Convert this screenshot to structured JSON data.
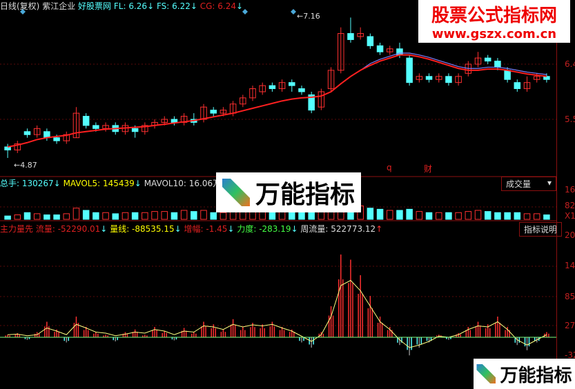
{
  "header": {
    "period": "日线(复权)",
    "stock": "紫江企业",
    "site": "好股票网",
    "fl": "FL: 6.26",
    "fs": "FS: 6.22",
    "cg": "CG: 6.24",
    "arrow": "↓"
  },
  "volume_legend": {
    "total": "总手: 130267",
    "mavol5": "MAVOL5: 145439",
    "mavol10": "MAVOL10: 16.06万",
    "selector": "成交量"
  },
  "indicator_legend": {
    "name": "主力量先",
    "flow": "流量: -52290.01",
    "line": "量线: -88535.15",
    "inc": "增幅: -1.45",
    "force": "力度: -283.19",
    "week": "周流量: 522773.12",
    "up": "↑",
    "btn": "指标说明"
  },
  "annotations": {
    "high": "7.16",
    "low": "4.87",
    "q": "q",
    "cai": "财"
  },
  "axis": {
    "price": [
      "6.4",
      "5.5"
    ],
    "volume": [
      "16",
      "82",
      "X1"
    ],
    "indicator": [
      "20",
      "14",
      "85",
      "27",
      "-32"
    ]
  },
  "watermarks": {
    "site_name": "股票公式指标网",
    "site_url": "www.gszx.com.cn",
    "logo": "万能指标"
  },
  "colors": {
    "up": "#ff3030",
    "down": "#54ffff",
    "ma": "#ff2020",
    "ma2": "#8080ff",
    "bg": "#000000"
  },
  "chart_data": [
    {
      "type": "candlestick",
      "title": "",
      "ylim": [
        4.7,
        7.3
      ],
      "ohlc": [
        [
          5.05,
          5.0,
          5.1,
          4.87
        ],
        [
          5.0,
          5.1,
          5.15,
          4.95
        ],
        [
          5.3,
          5.25,
          5.35,
          5.2
        ],
        [
          5.25,
          5.35,
          5.4,
          5.2
        ],
        [
          5.3,
          5.2,
          5.35,
          5.15
        ],
        [
          5.2,
          5.15,
          5.25,
          5.1
        ],
        [
          5.15,
          5.25,
          5.3,
          5.1
        ],
        [
          5.2,
          5.6,
          5.7,
          5.2
        ],
        [
          5.55,
          5.4,
          5.6,
          5.35
        ],
        [
          5.4,
          5.35,
          5.45,
          5.3
        ],
        [
          5.35,
          5.4,
          5.45,
          5.3
        ],
        [
          5.4,
          5.3,
          5.45,
          5.25
        ],
        [
          5.3,
          5.4,
          5.45,
          5.25
        ],
        [
          5.35,
          5.3,
          5.4,
          5.2
        ],
        [
          5.3,
          5.4,
          5.45,
          5.25
        ],
        [
          5.4,
          5.45,
          5.5,
          5.35
        ],
        [
          5.45,
          5.5,
          5.55,
          5.4
        ],
        [
          5.5,
          5.45,
          5.55,
          5.4
        ],
        [
          5.45,
          5.55,
          5.6,
          5.4
        ],
        [
          5.5,
          5.45,
          5.6,
          5.4
        ],
        [
          5.5,
          5.7,
          5.75,
          5.45
        ],
        [
          5.65,
          5.6,
          5.7,
          5.55
        ],
        [
          5.6,
          5.65,
          5.7,
          5.55
        ],
        [
          5.6,
          5.75,
          5.8,
          5.55
        ],
        [
          5.75,
          5.85,
          5.9,
          5.7
        ],
        [
          5.85,
          6.0,
          6.05,
          5.8
        ],
        [
          5.95,
          6.05,
          6.1,
          5.9
        ],
        [
          6.05,
          6.0,
          6.1,
          5.95
        ],
        [
          6.0,
          6.1,
          6.15,
          5.95
        ],
        [
          6.1,
          6.05,
          6.15,
          5.95
        ],
        [
          6.0,
          5.95,
          6.05,
          5.9
        ],
        [
          5.9,
          5.65,
          5.95,
          5.6
        ],
        [
          5.7,
          5.95,
          6.0,
          5.65
        ],
        [
          6.0,
          6.3,
          6.35,
          5.95
        ],
        [
          6.3,
          6.9,
          7.0,
          6.25
        ],
        [
          6.9,
          6.8,
          7.16,
          6.75
        ],
        [
          6.85,
          6.9,
          7.0,
          6.8
        ],
        [
          6.85,
          6.7,
          6.9,
          6.65
        ],
        [
          6.7,
          6.6,
          6.75,
          6.55
        ],
        [
          6.6,
          6.65,
          6.7,
          6.55
        ],
        [
          6.65,
          6.55,
          6.75,
          6.5
        ],
        [
          6.5,
          6.1,
          6.55,
          6.05
        ],
        [
          6.15,
          6.2,
          6.25,
          6.1
        ],
        [
          6.2,
          6.15,
          6.25,
          6.1
        ],
        [
          6.15,
          6.2,
          6.25,
          6.1
        ],
        [
          6.2,
          6.1,
          6.25,
          6.05
        ],
        [
          6.1,
          6.2,
          6.25,
          6.05
        ],
        [
          6.25,
          6.4,
          6.45,
          6.2
        ],
        [
          6.4,
          6.5,
          6.6,
          6.35
        ],
        [
          6.5,
          6.45,
          6.55,
          6.4
        ],
        [
          6.45,
          6.35,
          6.5,
          6.3
        ],
        [
          6.3,
          6.15,
          6.35,
          6.1
        ],
        [
          6.1,
          6.0,
          6.15,
          5.95
        ],
        [
          6.0,
          6.1,
          6.2,
          5.95
        ],
        [
          6.15,
          6.2,
          6.25,
          6.1
        ],
        [
          6.2,
          6.15,
          6.25,
          6.1
        ]
      ],
      "ma": [
        5.05,
        5.08,
        5.12,
        5.17,
        5.2,
        5.22,
        5.24,
        5.28,
        5.3,
        5.32,
        5.34,
        5.35,
        5.36,
        5.37,
        5.38,
        5.4,
        5.42,
        5.44,
        5.46,
        5.48,
        5.51,
        5.54,
        5.57,
        5.6,
        5.64,
        5.68,
        5.72,
        5.76,
        5.8,
        5.83,
        5.85,
        5.86,
        5.88,
        5.95,
        6.08,
        6.2,
        6.3,
        6.38,
        6.45,
        6.5,
        6.55,
        6.55,
        6.52,
        6.48,
        6.43,
        6.38,
        6.33,
        6.3,
        6.3,
        6.32,
        6.32,
        6.3,
        6.27,
        6.24,
        6.22,
        6.2
      ]
    },
    {
      "type": "bar",
      "title": "",
      "ylim": [
        0,
        16
      ],
      "values": [
        1.5,
        2,
        3,
        2.5,
        2,
        2,
        2.5,
        5,
        4,
        3,
        3,
        2.5,
        3,
        3,
        3,
        3.5,
        3.5,
        3,
        4,
        3.5,
        4,
        3,
        3,
        3.5,
        4,
        5,
        4.5,
        4,
        4,
        4,
        3.5,
        3,
        4,
        6,
        9,
        8,
        6,
        5,
        4.5,
        4,
        4,
        4.5,
        3.5,
        3,
        3,
        3,
        3,
        3.5,
        4,
        3.5,
        3,
        3,
        3,
        2.5,
        2.5,
        2
      ]
    },
    {
      "type": "bar",
      "title": "",
      "ylim": [
        -40,
        200
      ],
      "values": [
        5,
        8,
        -5,
        10,
        30,
        15,
        -10,
        40,
        20,
        10,
        5,
        -8,
        10,
        15,
        5,
        20,
        12,
        -6,
        18,
        10,
        30,
        25,
        15,
        35,
        20,
        28,
        25,
        30,
        20,
        15,
        -10,
        -20,
        10,
        60,
        160,
        150,
        120,
        80,
        40,
        20,
        -15,
        -35,
        -20,
        -10,
        5,
        -5,
        8,
        20,
        30,
        25,
        40,
        20,
        -15,
        -25,
        -10,
        10
      ],
      "signal": [
        5,
        6,
        3,
        5,
        18,
        12,
        5,
        25,
        18,
        10,
        8,
        3,
        6,
        10,
        8,
        15,
        12,
        5,
        12,
        10,
        22,
        20,
        15,
        25,
        20,
        24,
        22,
        25,
        18,
        12,
        2,
        -8,
        5,
        40,
        100,
        110,
        90,
        60,
        30,
        15,
        -5,
        -20,
        -15,
        -8,
        2,
        0,
        5,
        15,
        22,
        20,
        30,
        15,
        -5,
        -15,
        -5,
        5
      ]
    }
  ]
}
